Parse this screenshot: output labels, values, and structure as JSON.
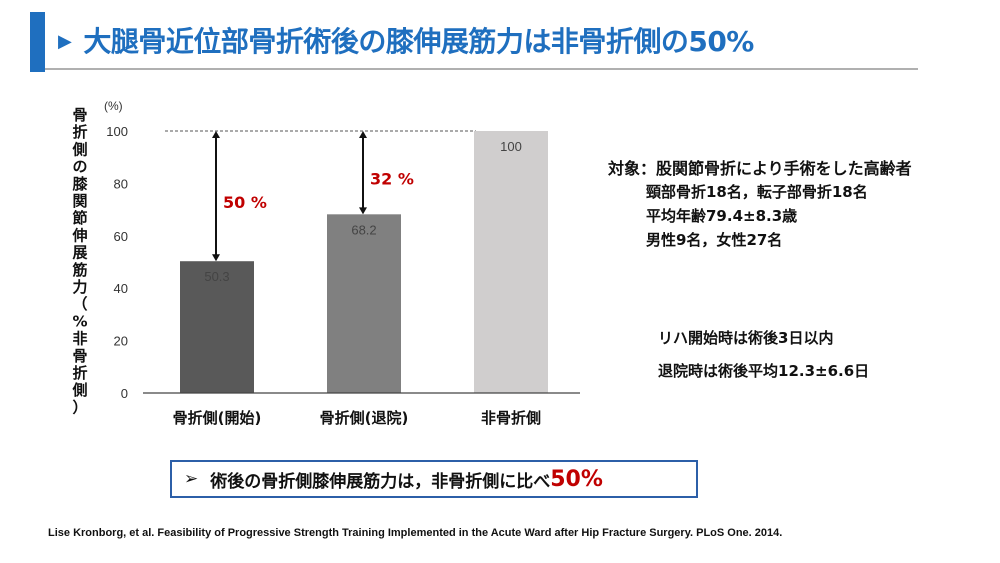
{
  "title": {
    "arrow_icon": "triangle-right-icon",
    "text": "大腿骨近位部骨折術後の膝伸展筋力は非骨折側の50%",
    "accent_color": "#1f6fbf"
  },
  "chart_data": {
    "type": "bar",
    "categories": [
      "骨折側(開始)",
      "骨折側(退院)",
      "非骨折側"
    ],
    "values": [
      50.3,
      68.2,
      100
    ],
    "data_labels": [
      "50.3",
      "68.2",
      "100"
    ],
    "bar_colors": [
      "#595959",
      "#808080",
      "#d0cece"
    ],
    "ylabel": "骨折側の膝関節伸展筋力（%非骨折側）",
    "yunit": "(%)",
    "ylim": [
      0,
      100
    ],
    "yticks": [
      "0",
      "20",
      "40",
      "60",
      "80",
      "100"
    ],
    "grid": false,
    "reference_line": 100,
    "annotations": [
      {
        "category": "骨折側(開始)",
        "from": 50.3,
        "to": 100,
        "label": "50 %"
      },
      {
        "category": "骨折側(退院)",
        "from": 68.2,
        "to": 100,
        "label": "32 %"
      }
    ],
    "annotation_color": "#c00000"
  },
  "info": {
    "subjects": "対象：股関節骨折により手術をした高齢者",
    "line1": "頸部骨折18名，転子部骨折18名",
    "line2": "平均年齢79.4±8.3歳",
    "line3": "男性9名，女性27名",
    "rehab_start": "リハ開始時は術後3日以内",
    "discharge": "退院時は術後平均12.3±6.6日"
  },
  "summary": {
    "bullet_icon": "arrowhead-bullet-icon",
    "bullet": "➢",
    "text": "術後の骨折側膝伸展筋力は，非骨折側に比べ",
    "highlight": "50%"
  },
  "citation": "Lise Kronborg, et al. Feasibility of Progressive Strength Training Implemented in the Acute Ward after Hip Fracture Surgery. PLoS One. 2014."
}
